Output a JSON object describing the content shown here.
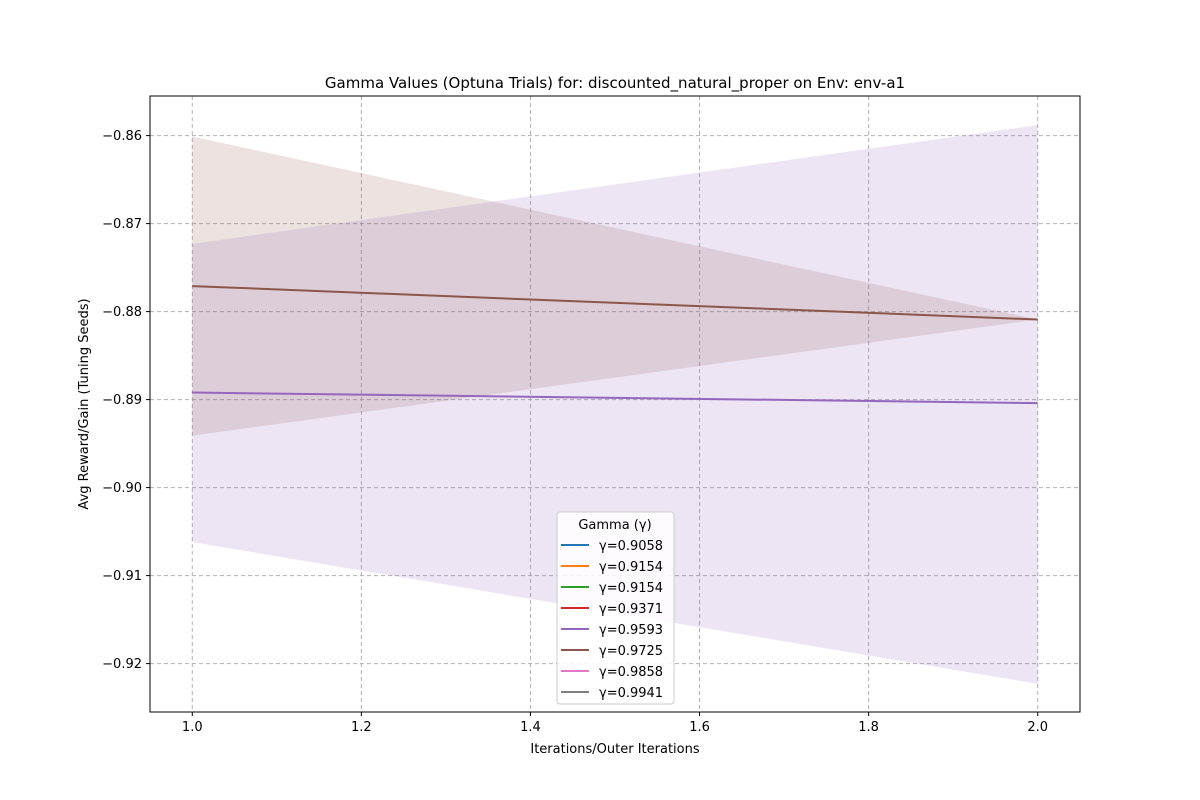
{
  "chart_data": {
    "type": "line",
    "title": "Gamma Values (Optuna Trials) for: discounted_natural_proper on Env: env-a1",
    "xlabel": "Iterations/Outer Iterations",
    "ylabel": "Avg Reward/Gain (Tuning Seeds)",
    "xlim": [
      0.95,
      2.05
    ],
    "ylim": [
      -0.9255,
      -0.8555
    ],
    "xticks": [
      1.0,
      1.2,
      1.4,
      1.6,
      1.8,
      2.0
    ],
    "xtick_labels": [
      "1.0",
      "1.2",
      "1.4",
      "1.6",
      "1.8",
      "2.0"
    ],
    "yticks": [
      -0.86,
      -0.87,
      -0.88,
      -0.89,
      -0.9,
      -0.91,
      -0.92
    ],
    "ytick_labels": [
      "−0.86",
      "−0.87",
      "−0.88",
      "−0.89",
      "−0.90",
      "−0.91",
      "−0.92"
    ],
    "grid": true,
    "legend": {
      "title": "Gamma (γ)",
      "placement": "lower-center"
    },
    "x": [
      1.0,
      2.0
    ],
    "series": [
      {
        "name": "γ=0.9058",
        "color": "#1f77b4",
        "values": null
      },
      {
        "name": "γ=0.9154",
        "color": "#ff7f0e",
        "values": null
      },
      {
        "name": "γ=0.9154",
        "color": "#2ca02c",
        "values": null
      },
      {
        "name": "γ=0.9371",
        "color": "#d62728",
        "values": null
      },
      {
        "name": "γ=0.9593",
        "color": "#9467bd",
        "values": [
          -0.8892,
          -0.8904
        ],
        "band_lower": [
          -0.9062,
          -0.9223
        ],
        "band_upper": [
          -0.8723,
          -0.8588
        ]
      },
      {
        "name": "γ=0.9725",
        "color": "#8c564b",
        "values": [
          -0.8771,
          -0.8809
        ],
        "band_lower": [
          -0.8941,
          -0.8809
        ],
        "band_upper": [
          -0.8601,
          -0.8809
        ]
      },
      {
        "name": "γ=0.9858",
        "color": "#e377c2",
        "values": null
      },
      {
        "name": "γ=0.9941",
        "color": "#7f7f7f",
        "values": null
      }
    ]
  }
}
